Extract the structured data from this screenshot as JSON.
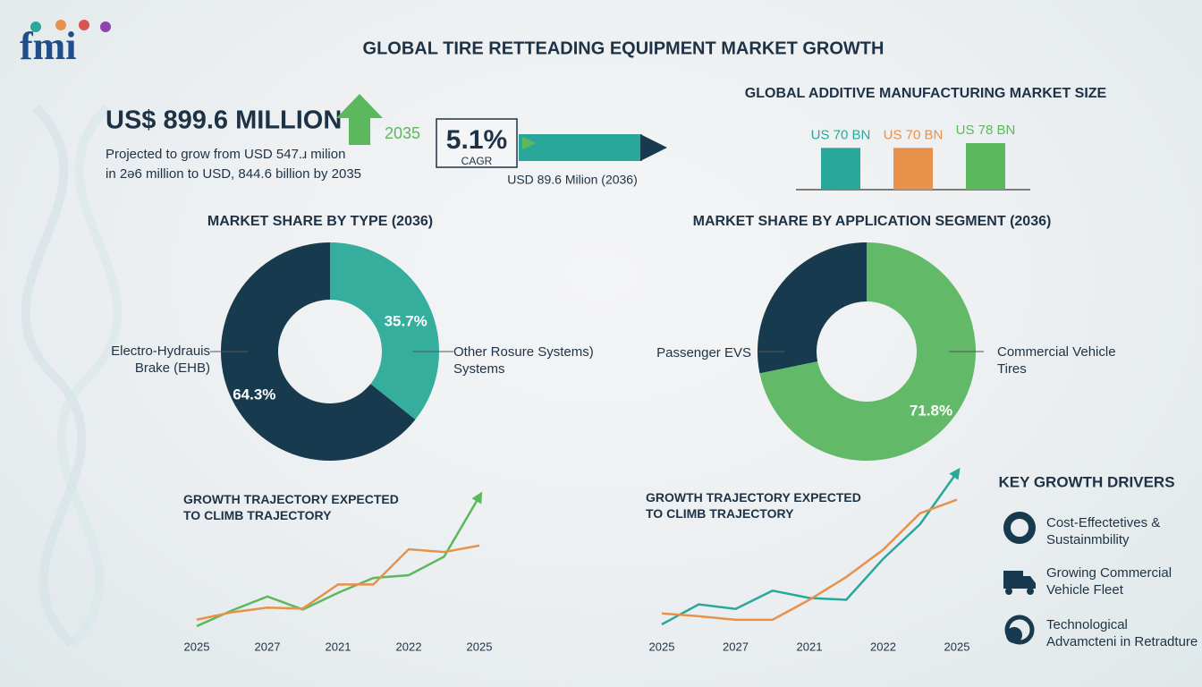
{
  "header": {
    "logo": "fmi",
    "title": "GLOBAL TIRE RETTEADING EQUIPMENT MARKET GROWTH"
  },
  "headline": {
    "value": "US$ 899.6 MILLION",
    "year": "2035",
    "description": [
      "Projected to grow from USD 547.ɹ milion",
      "in 2ə6 million to USD, 844.6 billion by 2035"
    ]
  },
  "cagr": {
    "value": "5.1%",
    "label": "CAGR",
    "note": "USD 89.6 Milion (2036)"
  },
  "drivers": {
    "title": "KEY GROWTH DRIVERS",
    "items": [
      "Cost-Effectetives & Sustainmbility",
      "Growing Commercial Vehicle Fleet",
      "Technological Advamcteni in Retradture"
    ]
  },
  "chart_data": [
    {
      "type": "bar",
      "title": "GLOBAL ADDITIVE MANUFACTURING MARKET SIZE",
      "categories": [
        null,
        null,
        null
      ],
      "values": [
        70,
        70,
        78
      ],
      "value_labels": [
        "US 70 BN",
        "US 70 BN",
        "US 78 BN"
      ],
      "colors": [
        "#2aa79b",
        "#e8914a",
        "#5cb85c"
      ]
    },
    {
      "type": "pie",
      "title": "MARKET SHARE BY TYPE (2036)",
      "categories": [
        "Electro-Hydrauis Brake (EHB)",
        "Other Rosure Systems) Systems"
      ],
      "values": [
        64.3,
        35.7
      ],
      "value_labels": [
        "64.3%",
        "35.7%"
      ],
      "colors": [
        "#173a4e",
        "#35ae9d"
      ]
    },
    {
      "type": "pie",
      "title": "MARKET SHARE BY APPLICATION SEGMENT  (2036)",
      "categories": [
        "Passenger EVS",
        "Commercial Vehicle Tires"
      ],
      "values": [
        28.2,
        71.8
      ],
      "value_labels": [
        null,
        "71.8%"
      ],
      "colors": [
        "#173a4e",
        "#62b968"
      ]
    },
    {
      "type": "line",
      "title": "GROWTH TRAJECTORY EXPECTED TO CLIMB TRAJECTORY",
      "categories": [
        "2025",
        null,
        "2027",
        null,
        "2021",
        null,
        "2022",
        null,
        "2025"
      ],
      "series": [
        {
          "color": "#5cb85c",
          "values": [
            25,
            42,
            57,
            43,
            61,
            77,
            80,
            100,
            165
          ]
        },
        {
          "color": "#e8914a",
          "values": [
            32,
            40,
            45,
            44,
            70,
            70,
            108,
            105,
            112
          ]
        }
      ]
    },
    {
      "type": "line",
      "title": "GROWTH TRAJECTORY EXPECTED TO CLIMB TRAJECTORY",
      "categories": [
        "2025",
        null,
        "2027",
        null,
        "2021",
        null,
        "2022",
        null,
        "2025"
      ],
      "series": [
        {
          "color": "#2aa79b",
          "values": [
            28,
            50,
            45,
            65,
            57,
            55,
            100,
            138,
            195
          ]
        },
        {
          "color": "#e8914a",
          "values": [
            40,
            37,
            33,
            33,
            55,
            80,
            110,
            150,
            165
          ]
        }
      ]
    }
  ]
}
